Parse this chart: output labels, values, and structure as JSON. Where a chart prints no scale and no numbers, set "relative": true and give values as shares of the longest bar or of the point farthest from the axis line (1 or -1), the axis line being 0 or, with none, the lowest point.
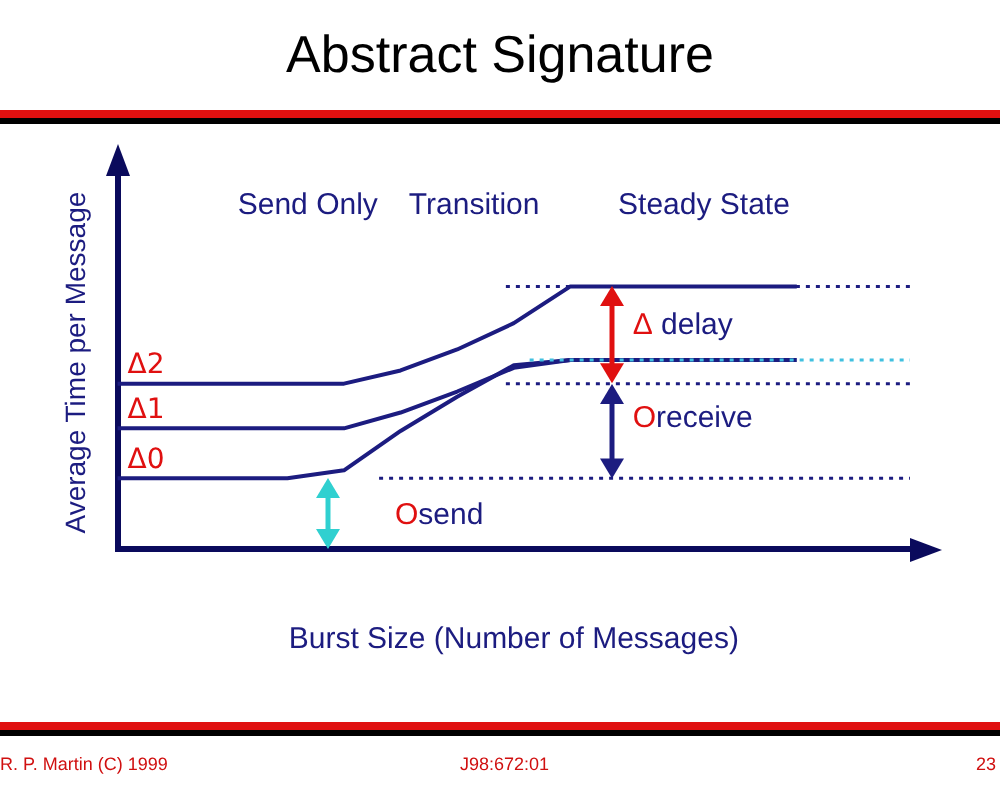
{
  "chart_data": {
    "type": "line",
    "title": "Abstract Signature",
    "xlabel": "Burst Size (Number of Messages)",
    "ylabel": "Average Time per Message",
    "relative": true,
    "grid": false,
    "legend": false,
    "marker": "none",
    "line_style": "solid",
    "categories": [
      null,
      null,
      null,
      null,
      null,
      null,
      null,
      null,
      null,
      null,
      null,
      null,
      null,
      null,
      null
    ],
    "series": [
      {
        "name": "Δ2",
        "color": "#1c1c80",
        "values": [
          0.63,
          0.63,
          0.63,
          0.63,
          0.63,
          0.68,
          0.76,
          0.86,
          1.0,
          1.0,
          1.0,
          1.0,
          1.0,
          null,
          null
        ]
      },
      {
        "name": "Δ1",
        "color": "#1c1c80",
        "values": [
          0.46,
          0.46,
          0.46,
          0.46,
          0.46,
          0.52,
          0.6,
          0.69,
          0.72,
          0.72,
          0.72,
          0.72,
          0.72,
          null,
          null
        ]
      },
      {
        "name": "Δ0",
        "color": "#1c1c80",
        "values": [
          0.27,
          0.27,
          0.27,
          0.27,
          0.3,
          0.45,
          0.58,
          0.7,
          0.72,
          null,
          null,
          null,
          null,
          null,
          null
        ]
      }
    ],
    "ref_lines": [
      {
        "axis": "y",
        "value": 1.0,
        "color": "#1c1c80",
        "line_style": "dotted"
      },
      {
        "axis": "y",
        "value": 0.72,
        "color": "#40c0e0",
        "line_style": "dotted"
      },
      {
        "axis": "y",
        "value": 0.63,
        "color": "#1c1c80",
        "line_style": "dotted"
      },
      {
        "axis": "y",
        "value": 0.27,
        "color": "#1c1c80",
        "line_style": "dotted"
      }
    ],
    "annotations": [
      "Send Only",
      "Transition",
      "Steady State",
      "Osend",
      "Δ delay",
      "Oreceive",
      "R. P. Martin (C) 1999",
      "J98:672:01",
      "23"
    ]
  }
}
